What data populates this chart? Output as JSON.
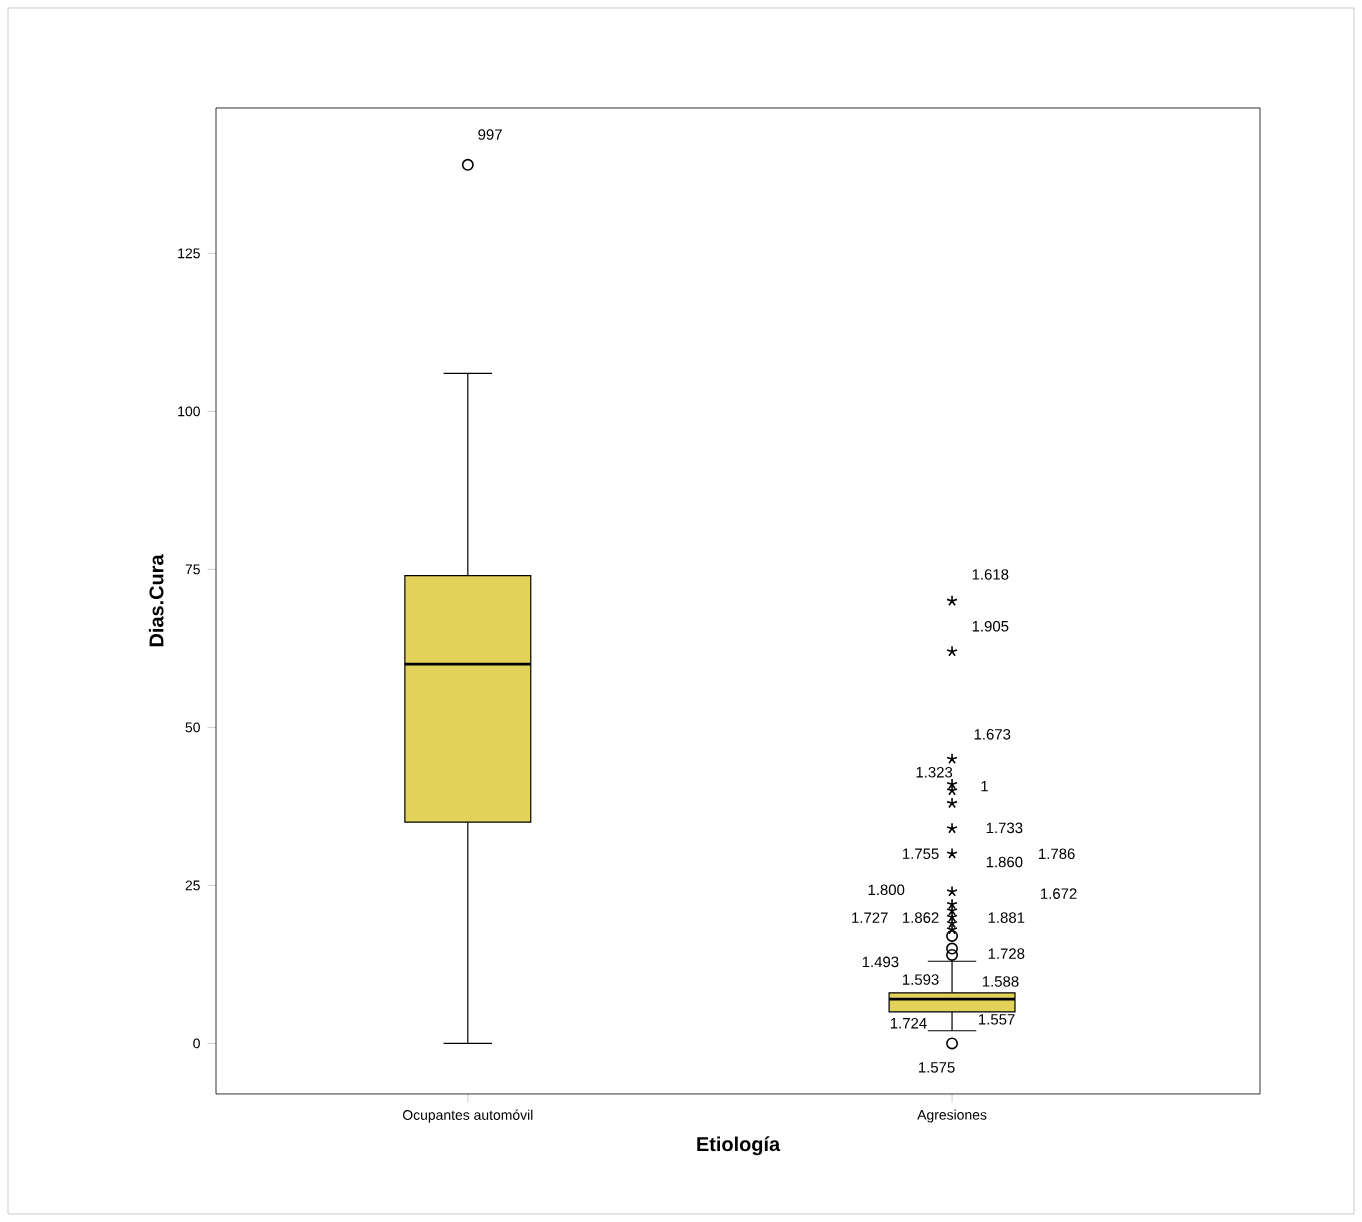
{
  "chart_data": {
    "type": "box",
    "xlabel": "Etiología",
    "ylabel": "Dias.Cura",
    "categories": [
      "Ocupantes automóvil",
      "Agresiones"
    ],
    "color": "#e3d25a",
    "ylim": [
      -8,
      148
    ],
    "yticks": [
      0,
      25,
      50,
      75,
      100,
      125
    ],
    "boxes": [
      {
        "low": 0,
        "q1": 35,
        "median": 60,
        "q3": 74,
        "high": 106,
        "outliers": [
          139
        ]
      },
      {
        "low": 2,
        "q1": 5,
        "median": 7,
        "q3": 8,
        "high": 13,
        "outliers": [
          0,
          14,
          15,
          17,
          18,
          19,
          20,
          21,
          22,
          24,
          30,
          34,
          38,
          40,
          41,
          45,
          62,
          70
        ]
      }
    ],
    "annotations": [
      "997",
      "1.618",
      "1.905",
      "1.673",
      "1.323",
      "1",
      "1.733",
      "1.755",
      "1.860",
      "1.786",
      "1.800",
      "1.672",
      "1.727",
      "1.862",
      "1.881",
      "1.493",
      "1.728",
      "1.593",
      "1.588",
      "1.724",
      "1.557",
      "1.575"
    ]
  }
}
